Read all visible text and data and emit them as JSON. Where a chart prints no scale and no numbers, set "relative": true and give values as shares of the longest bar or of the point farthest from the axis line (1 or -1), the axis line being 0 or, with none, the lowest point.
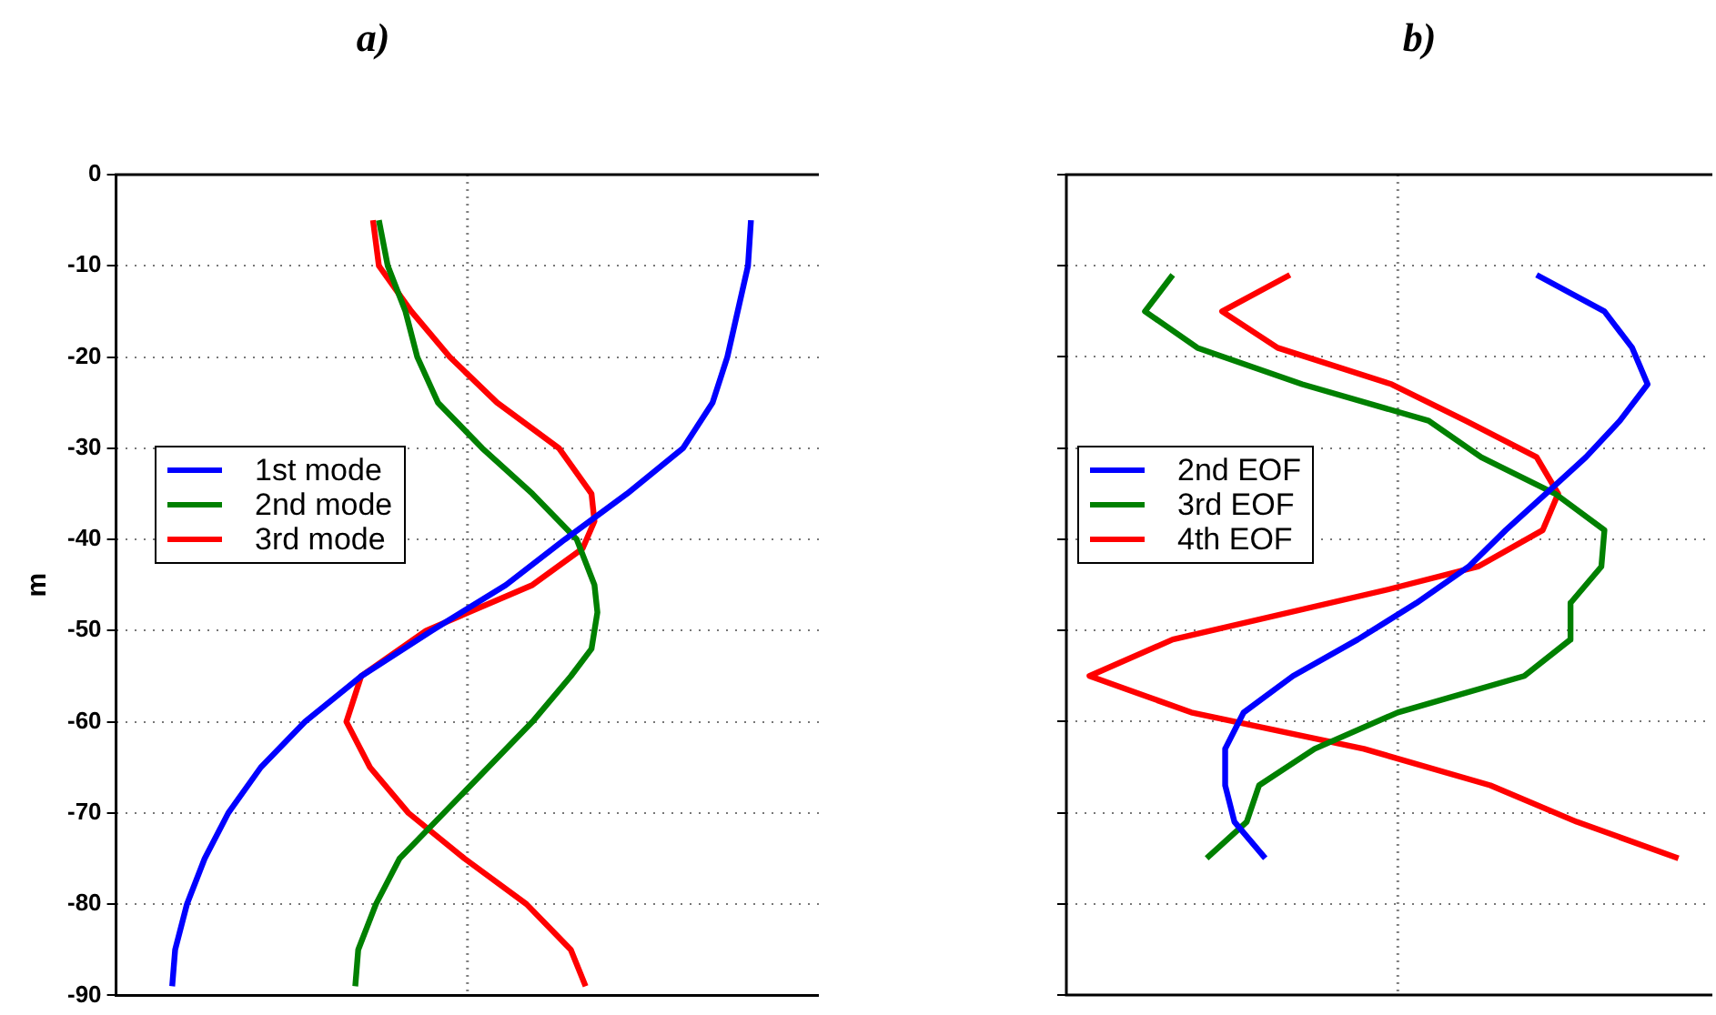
{
  "chart_data": [
    {
      "type": "line",
      "title": "a)",
      "ylabel": "m",
      "orientation": "horizontal",
      "relative": true,
      "ylim": [
        -90,
        0
      ],
      "yticks": [
        0,
        -10,
        -20,
        -30,
        -40,
        -50,
        -60,
        -70,
        -80,
        -90
      ],
      "grid": "y",
      "tick_labels": "y",
      "legend": "left",
      "ref_lines": [
        {
          "axis": "x",
          "value": 0,
          "color": "#808080",
          "line_style": "dotted"
        }
      ],
      "series": [
        {
          "name": "1st mode",
          "color": "#0000ff",
          "x": [
            -5,
            -10,
            -20,
            -25,
            -30,
            -35,
            -40,
            -45,
            -50,
            -55,
            -60,
            -65,
            -70,
            -75,
            -80,
            -85,
            -89
          ],
          "values": [
            0.96,
            0.95,
            0.88,
            0.83,
            0.73,
            0.54,
            0.33,
            0.13,
            -0.12,
            -0.36,
            -0.55,
            -0.7,
            -0.81,
            -0.89,
            -0.95,
            -0.99,
            -1
          ]
        },
        {
          "name": "2nd mode",
          "color": "#008000",
          "x": [
            -5,
            -10,
            -15,
            -20,
            -25,
            -30,
            -35,
            -40,
            -45,
            -48,
            -52,
            -55,
            -60,
            -65,
            -70,
            -75,
            -80,
            -85,
            -89
          ],
          "values": [
            -0.3,
            -0.27,
            -0.21,
            -0.17,
            -0.1,
            0.05,
            0.22,
            0.37,
            0.43,
            0.44,
            0.42,
            0.35,
            0.22,
            0.07,
            -0.08,
            -0.23,
            -0.31,
            -0.37,
            -0.38
          ]
        },
        {
          "name": "3rd mode",
          "color": "#ff0000",
          "x": [
            -5,
            -10,
            -15,
            -20,
            -25,
            -30,
            -35,
            -38,
            -41,
            -45,
            -50,
            -55,
            -60,
            -65,
            -70,
            -75,
            -80,
            -85,
            -89
          ],
          "values": [
            -0.32,
            -0.3,
            -0.19,
            -0.06,
            0.1,
            0.31,
            0.42,
            0.43,
            0.39,
            0.22,
            -0.14,
            -0.36,
            -0.41,
            -0.33,
            -0.2,
            -0.01,
            0.2,
            0.35,
            0.4
          ]
        }
      ]
    },
    {
      "type": "line",
      "title": "b)",
      "orientation": "horizontal",
      "relative": true,
      "ylim": [
        -90,
        0
      ],
      "yticks": [
        0,
        -10,
        -20,
        -30,
        -40,
        -50,
        -60,
        -70,
        -80,
        -90
      ],
      "grid": "y",
      "tick_labels": false,
      "legend": "left",
      "ref_lines": [
        {
          "axis": "x",
          "value": 0,
          "color": "#808080",
          "line_style": "dotted"
        }
      ],
      "series": [
        {
          "name": "2nd EOF",
          "color": "#0000ff",
          "x": [
            -11,
            -15,
            -19,
            -23,
            -27,
            -31,
            -35,
            -39,
            -43,
            -47,
            -51,
            -55,
            -59,
            -63,
            -67,
            -71,
            -75
          ],
          "values": [
            0.45,
            0.67,
            0.76,
            0.81,
            0.72,
            0.61,
            0.48,
            0.35,
            0.23,
            0.06,
            -0.13,
            -0.34,
            -0.5,
            -0.56,
            -0.56,
            -0.53,
            -0.43
          ]
        },
        {
          "name": "3rd EOF",
          "color": "#008000",
          "x": [
            -11,
            -15,
            -19,
            -23,
            -27,
            -31,
            -35,
            -39,
            -43,
            -47,
            -51,
            -55,
            -59,
            -63,
            -67,
            -71,
            -75
          ],
          "values": [
            -0.73,
            -0.82,
            -0.65,
            -0.31,
            0.1,
            0.27,
            0.51,
            0.67,
            0.66,
            0.56,
            0.56,
            0.41,
            0,
            -0.27,
            -0.45,
            -0.49,
            -0.62
          ]
        },
        {
          "name": "4th EOF",
          "color": "#ff0000",
          "x": [
            -11,
            -15,
            -19,
            -23,
            -27,
            -31,
            -35,
            -39,
            -43,
            -45.5,
            -51,
            -55,
            -59,
            -63,
            -67,
            -71,
            -75
          ],
          "values": [
            -0.35,
            -0.57,
            -0.39,
            -0.02,
            0.22,
            0.45,
            0.52,
            0.47,
            0.26,
            -0.03,
            -0.73,
            -1,
            -0.67,
            -0.11,
            0.3,
            0.58,
            0.91
          ]
        }
      ]
    }
  ]
}
